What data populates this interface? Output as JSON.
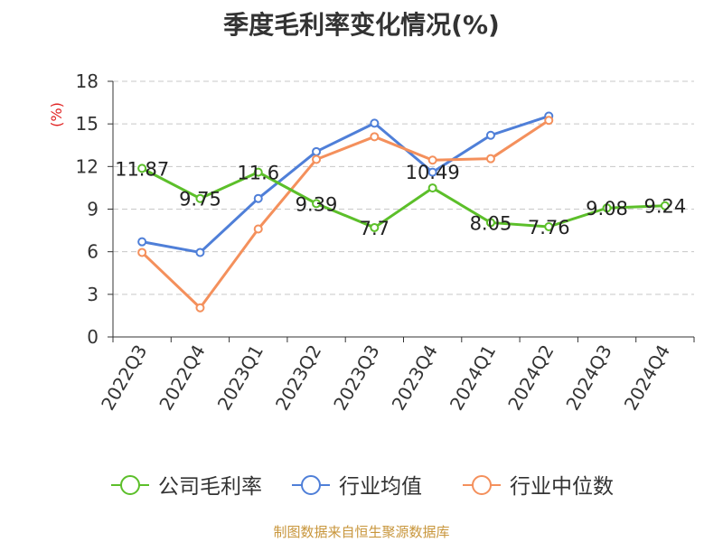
{
  "title": "季度毛利率变化情况(%)",
  "source": "制图数据来自恒生聚源数据库",
  "chart_data": {
    "type": "line",
    "title": "季度毛利率变化情况(%)",
    "ylabel": "(%)",
    "ylim": [
      0,
      18
    ],
    "yticks": [
      0,
      3,
      6,
      9,
      12,
      15,
      18
    ],
    "grid": true,
    "legend_position": "bottom",
    "categories": [
      "2022Q3",
      "2022Q4",
      "2023Q1",
      "2023Q2",
      "2023Q3",
      "2023Q4",
      "2024Q1",
      "2024Q2",
      "2024Q3",
      "2024Q4"
    ],
    "series": [
      {
        "name": "公司毛利率",
        "color": "#5cbf2a",
        "show_labels": true,
        "values": [
          11.87,
          9.75,
          11.6,
          9.39,
          7.7,
          10.49,
          8.05,
          7.76,
          9.08,
          9.24
        ]
      },
      {
        "name": "行业均值",
        "color": "#4f7fd8",
        "show_labels": false,
        "values": [
          6.7,
          5.95,
          9.75,
          13.05,
          15.05,
          11.6,
          14.2,
          15.55,
          null,
          null
        ]
      },
      {
        "name": "行业中位数",
        "color": "#f4905c",
        "show_labels": false,
        "values": [
          5.95,
          2.05,
          7.6,
          12.5,
          14.1,
          12.45,
          12.55,
          15.25,
          null,
          null
        ]
      }
    ]
  }
}
